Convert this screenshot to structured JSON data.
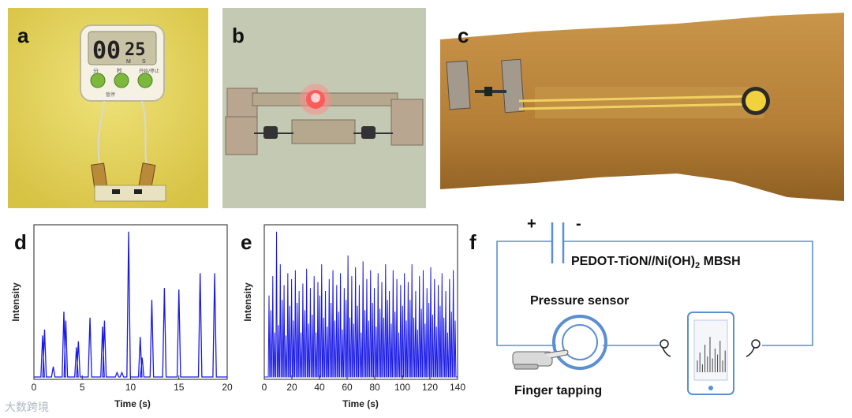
{
  "panels": {
    "a": "a",
    "b": "b",
    "c": "c",
    "d": "d",
    "e": "e",
    "f": "f"
  },
  "timer": {
    "display_minutes": "00",
    "display_seconds": "25",
    "unit_m": "M",
    "unit_s": "S",
    "btn1": "分",
    "btn2": "秒",
    "btn3": "开始/停止",
    "label_small": "暂停"
  },
  "colors": {
    "plot_line": "#1a1ae6",
    "diagram_stroke": "#5b8fd0",
    "photo_yellow": "#e6d65a",
    "photo_arm": "#c08a3a"
  },
  "chart_data": [
    {
      "type": "line",
      "panel": "d",
      "xlabel": "Time (s)",
      "ylabel": "Intensity",
      "xlim": [
        0,
        20
      ],
      "xticks": [
        0,
        5,
        10,
        15,
        20
      ],
      "peaks": [
        {
          "x": 0.9,
          "y": 0.28
        },
        {
          "x": 1.1,
          "y": 0.32
        },
        {
          "x": 2.0,
          "y": 0.07
        },
        {
          "x": 3.1,
          "y": 0.44
        },
        {
          "x": 3.3,
          "y": 0.38
        },
        {
          "x": 4.4,
          "y": 0.2
        },
        {
          "x": 4.6,
          "y": 0.24
        },
        {
          "x": 5.8,
          "y": 0.4
        },
        {
          "x": 7.1,
          "y": 0.34
        },
        {
          "x": 7.3,
          "y": 0.38
        },
        {
          "x": 8.6,
          "y": 0.03
        },
        {
          "x": 9.1,
          "y": 0.03
        },
        {
          "x": 9.8,
          "y": 0.98
        },
        {
          "x": 11.0,
          "y": 0.27
        },
        {
          "x": 11.2,
          "y": 0.13
        },
        {
          "x": 12.2,
          "y": 0.52
        },
        {
          "x": 13.5,
          "y": 0.6
        },
        {
          "x": 15.0,
          "y": 0.59
        },
        {
          "x": 17.2,
          "y": 0.7
        },
        {
          "x": 18.7,
          "y": 0.7
        }
      ]
    },
    {
      "type": "line",
      "panel": "e",
      "xlabel": "Time (s)",
      "ylabel": "Intensity",
      "xlim": [
        0,
        140
      ],
      "xticks": [
        0,
        20,
        40,
        60,
        80,
        100,
        120,
        140
      ],
      "peak_heights": [
        0.55,
        0.45,
        0.68,
        0.3,
        0.98,
        0.35,
        0.76,
        0.52,
        0.62,
        0.28,
        0.7,
        0.48,
        0.66,
        0.38,
        0.72,
        0.5,
        0.58,
        0.3,
        0.63,
        0.45,
        0.73,
        0.36,
        0.6,
        0.42,
        0.68,
        0.3,
        0.64,
        0.55,
        0.76,
        0.4,
        0.58,
        0.34,
        0.66,
        0.5,
        0.72,
        0.38,
        0.62,
        0.44,
        0.7,
        0.32,
        0.6,
        0.52,
        0.82,
        0.4,
        0.68,
        0.36,
        0.74,
        0.48,
        0.62,
        0.3,
        0.78,
        0.45,
        0.66,
        0.38,
        0.72,
        0.5,
        0.6,
        0.34,
        0.7,
        0.46,
        0.64,
        0.4,
        0.76,
        0.52,
        0.58,
        0.36,
        0.72,
        0.44,
        0.66,
        0.3,
        0.62,
        0.48,
        0.7,
        0.38,
        0.64,
        0.52,
        0.76,
        0.4,
        0.58,
        0.32,
        0.68,
        0.46,
        0.72,
        0.36,
        0.6,
        0.5,
        0.74,
        0.42,
        0.66,
        0.34,
        0.62,
        0.48,
        0.7,
        0.4,
        0.58,
        0.3,
        0.66,
        0.44,
        0.72,
        0.38
      ]
    }
  ],
  "diagram": {
    "plus": "+",
    "minus": "-",
    "device_label_prefix": "PEDOT-TiON//Ni(OH)",
    "device_label_sub": "2",
    "device_label_suffix": " MBSH",
    "sensor_label": "Pressure sensor",
    "finger_label": "Finger tapping"
  },
  "watermark": "大数跨境"
}
